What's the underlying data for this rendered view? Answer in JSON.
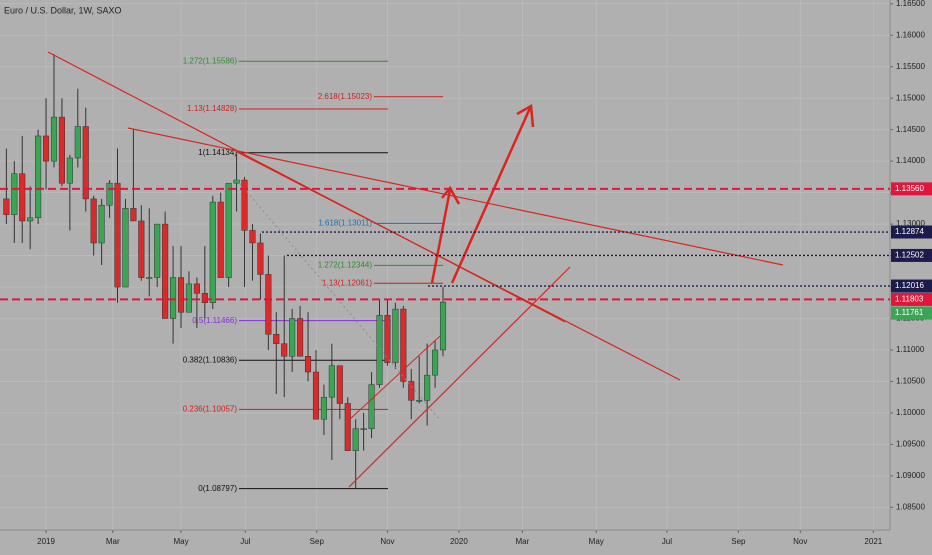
{
  "chart_data": {
    "type": "candlestick",
    "title": "Euro / U.S. Dollar, 1W, SAXO",
    "up_color": "#3aa655",
    "down_color": "#d92b2b",
    "x": [
      -5,
      -4,
      -3,
      -2,
      -1,
      0,
      1,
      2,
      3,
      4,
      5,
      6,
      7,
      8,
      9,
      10,
      11,
      12,
      13,
      14,
      15,
      16,
      17,
      18,
      19,
      20,
      21,
      22,
      23,
      24,
      25,
      26,
      27,
      28,
      29,
      30,
      31,
      32,
      33,
      34,
      35,
      36,
      37,
      38,
      39,
      40,
      41,
      42,
      43,
      44,
      45,
      46,
      47,
      48,
      49,
      50
    ],
    "open": [
      1.134,
      1.1315,
      1.138,
      1.1305,
      1.131,
      1.144,
      1.14,
      1.147,
      1.1365,
      1.1405,
      1.1455,
      1.134,
      1.127,
      1.133,
      1.1365,
      1.12,
      1.1325,
      1.1305,
      1.1215,
      1.1215,
      1.13,
      1.115,
      1.1215,
      1.116,
      1.1205,
      1.119,
      1.1175,
      1.1335,
      1.1215,
      1.1365,
      1.137,
      1.129,
      1.127,
      1.122,
      1.1125,
      1.111,
      1.109,
      1.115,
      1.109,
      1.1065,
      1.099,
      1.1025,
      1.1075,
      1.1015,
      1.094,
      1.0975,
      1.0975,
      1.1045,
      1.1155,
      1.108,
      1.1165,
      1.105,
      1.102,
      1.102,
      1.106,
      1.11
    ],
    "high": [
      1.142,
      1.14,
      1.144,
      1.136,
      1.145,
      1.15,
      1.157,
      1.15,
      1.141,
      1.1515,
      1.1485,
      1.1345,
      1.134,
      1.137,
      1.142,
      1.134,
      1.145,
      1.133,
      1.1325,
      1.13,
      1.132,
      1.1265,
      1.1265,
      1.1225,
      1.1215,
      1.1265,
      1.1345,
      1.135,
      1.1365,
      1.1412,
      1.1375,
      1.13,
      1.1285,
      1.125,
      1.116,
      1.125,
      1.1165,
      1.117,
      1.116,
      1.11,
      1.1045,
      1.111,
      1.1075,
      1.1025,
      1.099,
      1.1,
      1.1065,
      1.118,
      1.118,
      1.1175,
      1.117,
      1.107,
      1.109,
      1.111,
      1.1115,
      1.12
    ],
    "low": [
      1.13,
      1.127,
      1.127,
      1.126,
      1.13,
      1.1355,
      1.139,
      1.136,
      1.129,
      1.139,
      1.132,
      1.125,
      1.1235,
      1.131,
      1.1175,
      1.12,
      1.131,
      1.121,
      1.1185,
      1.12,
      1.115,
      1.111,
      1.1135,
      1.116,
      1.1135,
      1.115,
      1.1165,
      1.122,
      1.12,
      1.132,
      1.12,
      1.121,
      1.118,
      1.11,
      1.103,
      1.1025,
      1.1065,
      1.109,
      1.105,
      1.099,
      1.0965,
      1.0925,
      1.099,
      1.094,
      1.088,
      1.094,
      1.096,
      1.104,
      1.1075,
      1.107,
      1.104,
      1.099,
      1.1015,
      1.098,
      1.104,
      1.109
    ],
    "close": [
      1.1315,
      1.138,
      1.1305,
      1.131,
      1.144,
      1.14,
      1.147,
      1.1365,
      1.1405,
      1.1455,
      1.134,
      1.127,
      1.133,
      1.1365,
      1.12,
      1.1325,
      1.1305,
      1.1215,
      1.1215,
      1.13,
      1.115,
      1.1215,
      1.116,
      1.1205,
      1.119,
      1.1175,
      1.1335,
      1.1215,
      1.1365,
      1.137,
      1.129,
      1.127,
      1.122,
      1.1125,
      1.111,
      1.109,
      1.115,
      1.109,
      1.1065,
      1.099,
      1.1025,
      1.1075,
      1.1015,
      1.094,
      1.0975,
      1.0975,
      1.1045,
      1.1155,
      1.108,
      1.1165,
      1.105,
      1.102,
      1.102,
      1.106,
      1.11,
      1.1176
    ],
    "xlim": [
      -5.8,
      106.3
    ],
    "xticks": [
      {
        "value": 0,
        "label": "2019"
      },
      {
        "value": 8.4,
        "label": "Mar"
      },
      {
        "value": 17,
        "label": "May"
      },
      {
        "value": 25.1,
        "label": "Jul"
      },
      {
        "value": 34.1,
        "label": "Sep"
      },
      {
        "value": 43,
        "label": "Nov"
      },
      {
        "value": 52,
        "label": "2020"
      },
      {
        "value": 60,
        "label": "Mar"
      },
      {
        "value": 69.3,
        "label": "May"
      },
      {
        "value": 78.2,
        "label": "Jul"
      },
      {
        "value": 87.2,
        "label": "Sep"
      },
      {
        "value": 95,
        "label": "Nov"
      },
      {
        "value": 104.2,
        "label": "2021"
      }
    ],
    "ylim": [
      1.0814,
      1.1656
    ],
    "yticks": [
      {
        "value": 1.085,
        "label": "1.08500"
      },
      {
        "value": 1.09,
        "label": "1.09000"
      },
      {
        "value": 1.095,
        "label": "1.09500"
      },
      {
        "value": 1.1,
        "label": "1.10000"
      },
      {
        "value": 1.105,
        "label": "1.10500"
      },
      {
        "value": 1.11,
        "label": "1.11000"
      },
      {
        "value": 1.115,
        "label": "1.11500"
      },
      {
        "value": 1.12,
        "label": "1.12000"
      },
      {
        "value": 1.125,
        "label": "1.12500"
      },
      {
        "value": 1.13,
        "label": "1.13000"
      },
      {
        "value": 1.135,
        "label": "1.13500"
      },
      {
        "value": 1.14,
        "label": "1.14000"
      },
      {
        "value": 1.145,
        "label": "1.14500"
      },
      {
        "value": 1.15,
        "label": "1.15000"
      },
      {
        "value": 1.155,
        "label": "1.15500"
      },
      {
        "value": 1.16,
        "label": "1.16000"
      },
      {
        "value": 1.165,
        "label": "1.16500"
      }
    ],
    "grid": true,
    "levels": [
      {
        "value": 1.1356,
        "label": "1.13560",
        "color": "#e0173c"
      },
      {
        "value": 1.12874,
        "label": "1.12874",
        "color": "#1c1c4c"
      },
      {
        "value": 1.12502,
        "label": "1.12502",
        "color": "#1c1c4c"
      },
      {
        "value": 1.12016,
        "label": "1.12016",
        "color": "#1c1c4c"
      },
      {
        "value": 1.11803,
        "label": "1.11803",
        "color": "#e0173c"
      },
      {
        "value": 1.11761,
        "label": "1.11761",
        "color": "#3aa655"
      }
    ],
    "fibs": [
      {
        "value": 1.15586,
        "label": "1.272(1.15586)",
        "color": "#2e8b2e"
      },
      {
        "value": 1.15023,
        "label": "2.618(1.15023)",
        "color": "#d02020"
      },
      {
        "value": 1.14828,
        "label": "1.13(1.14828)",
        "color": "#d02020"
      },
      {
        "value": 1.14134,
        "label": "1(1.14134)",
        "color": "#111111"
      },
      {
        "value": 1.13011,
        "label": "1.618(1.13011)",
        "color": "#1e6fb0"
      },
      {
        "value": 1.12344,
        "label": "1.272(1.12344)",
        "color": "#2e8b2e"
      },
      {
        "value": 1.12061,
        "label": "1.13(1.12061)",
        "color": "#d02020"
      },
      {
        "value": 1.11466,
        "label": "0.5(1.11466)",
        "color": "#8a2be2"
      },
      {
        "value": 1.10836,
        "label": "0.382(1.10836)",
        "color": "#111111"
      },
      {
        "value": 1.10057,
        "label": "0.236(1.10057)",
        "color": "#d02020"
      },
      {
        "value": 1.08797,
        "label": "0(1.08797)",
        "color": "#111111"
      }
    ]
  }
}
